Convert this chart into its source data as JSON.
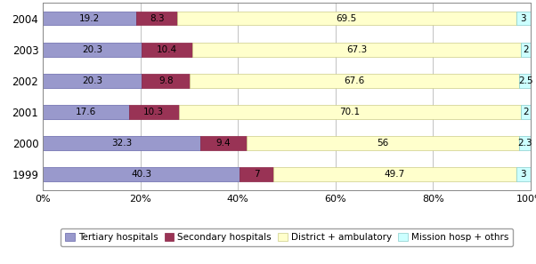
{
  "years": [
    "2004",
    "2003",
    "2002",
    "2001",
    "2000",
    "1999"
  ],
  "tertiary": [
    19.2,
    20.3,
    20.3,
    17.6,
    32.3,
    40.3
  ],
  "secondary": [
    8.3,
    10.4,
    9.8,
    10.3,
    9.4,
    7.0
  ],
  "district": [
    69.5,
    67.3,
    67.6,
    70.1,
    56.0,
    49.7
  ],
  "mission": [
    3.0,
    2.0,
    2.5,
    2.0,
    2.3,
    3.0
  ],
  "tertiary_labels": [
    "19.2",
    "20.3",
    "20.3",
    "17.6",
    "32.3",
    "40.3"
  ],
  "secondary_labels": [
    "8.3",
    "10.4",
    "9.8",
    "10.3",
    "9.4",
    "7"
  ],
  "district_labels": [
    "69.5",
    "67.3",
    "67.6",
    "70.1",
    "56",
    "49.7"
  ],
  "mission_labels": [
    "3",
    "2",
    "2.5",
    "2",
    "2.3",
    "3"
  ],
  "color_tertiary": "#9999CC",
  "color_secondary": "#993355",
  "color_district": "#FFFFCC",
  "color_mission": "#CCFFFF",
  "color_edge_tertiary": "#6666AA",
  "color_edge_secondary": "#882244",
  "color_edge_district": "#CCCC88",
  "color_edge_mission": "#88CCCC",
  "legend_labels": [
    "Tertiary hospitals",
    "Secondary hospitals",
    "District + ambulatory",
    "Mission hosp + othrs"
  ],
  "bar_height": 0.45,
  "figsize": [
    6.02,
    2.97
  ],
  "dpi": 100
}
